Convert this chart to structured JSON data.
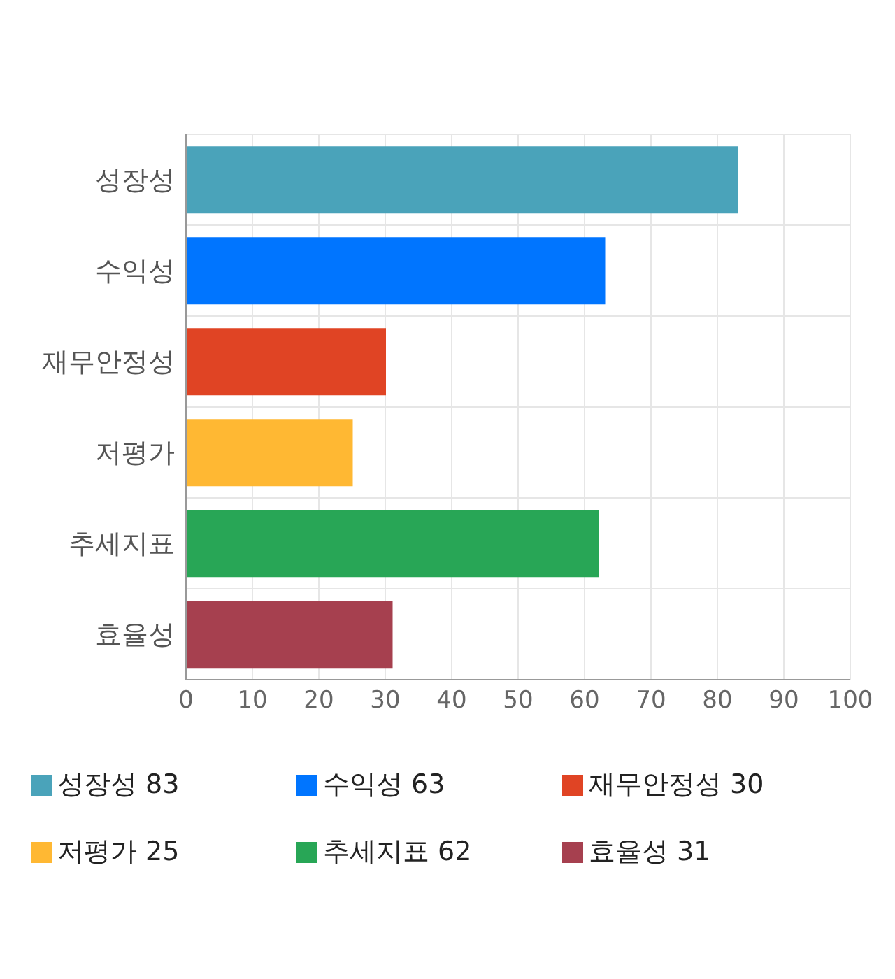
{
  "chart_data": {
    "type": "bar",
    "orientation": "horizontal",
    "stacked": true,
    "categories": [
      "성장성",
      "수익성",
      "재무안정성",
      "저평가",
      "추세지표",
      "효율성"
    ],
    "series": [
      {
        "name": "성장성 83",
        "color": "#4aa3ba",
        "values": [
          83,
          null,
          null,
          null,
          null,
          null
        ]
      },
      {
        "name": "수익성 63",
        "color": "#0075ff",
        "values": [
          null,
          63,
          null,
          null,
          null,
          null
        ]
      },
      {
        "name": "재무안정성 30",
        "color": "#e04424",
        "values": [
          null,
          null,
          30,
          null,
          null,
          null
        ]
      },
      {
        "name": "저평가 25",
        "color": "#ffb833",
        "values": [
          null,
          null,
          null,
          25,
          null,
          null
        ]
      },
      {
        "name": "추세지표 62",
        "color": "#28a656",
        "values": [
          null,
          null,
          null,
          null,
          62,
          null
        ]
      },
      {
        "name": "효율성 31",
        "color": "#a6404f",
        "values": [
          null,
          null,
          null,
          null,
          null,
          31
        ]
      }
    ],
    "xlim": [
      0,
      100
    ],
    "xticks": [
      0,
      10,
      20,
      30,
      40,
      50,
      60,
      70,
      80,
      90,
      100
    ],
    "grid": true,
    "legend": "bottom"
  }
}
